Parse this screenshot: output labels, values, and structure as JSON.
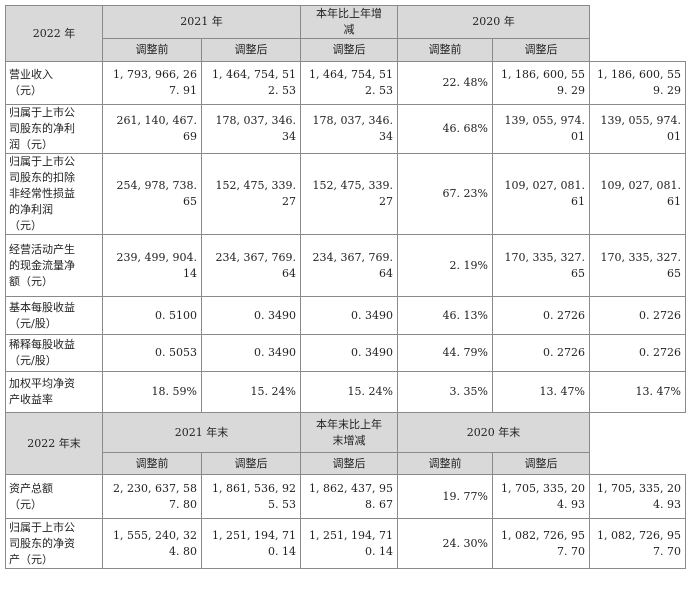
{
  "top_header": {
    "year_2022": "2022 年",
    "year_2021": "2021 年",
    "change": [
      "本年比上年增",
      "减"
    ],
    "year_2020": "2020 年",
    "before_adj": "调整前",
    "after_adj": "调整后"
  },
  "income_rows": [
    {
      "label": [
        "营业收入",
        "（元）"
      ],
      "v2022": [
        "1, 793, 966, 26",
        "7. 91"
      ],
      "v2021_before": [
        "1, 464, 754, 51",
        "2. 53"
      ],
      "v2021_after": [
        "1, 464, 754, 51",
        "2. 53"
      ],
      "change": "22. 48%",
      "v2020_before": [
        "1, 186, 600, 55",
        "9. 29"
      ],
      "v2020_after": [
        "1, 186, 600, 55",
        "9. 29"
      ]
    },
    {
      "label": [
        "归属于上市公",
        "司股东的净利",
        "润（元）"
      ],
      "v2022": [
        "261, 140, 467.",
        "69"
      ],
      "v2021_before": [
        "178, 037, 346.",
        "34"
      ],
      "v2021_after": [
        "178, 037, 346.",
        "34"
      ],
      "change": "46. 68%",
      "v2020_before": [
        "139, 055, 974.",
        "01"
      ],
      "v2020_after": [
        "139, 055, 974.",
        "01"
      ]
    },
    {
      "label": [
        "归属于上市公",
        "司股东的扣除",
        "非经常性损益",
        "的净利润",
        "（元）"
      ],
      "v2022": [
        "254, 978, 738.",
        "65"
      ],
      "v2021_before": [
        "152, 475, 339.",
        "27"
      ],
      "v2021_after": [
        "152, 475, 339.",
        "27"
      ],
      "change": "67. 23%",
      "v2020_before": [
        "109, 027, 081.",
        "61"
      ],
      "v2020_after": [
        "109, 027, 081.",
        "61"
      ]
    },
    {
      "label": [
        "经营活动产生",
        "的现金流量净",
        "额（元）"
      ],
      "v2022": [
        "239, 499, 904.",
        "14"
      ],
      "v2021_before": [
        "234, 367, 769.",
        "64"
      ],
      "v2021_after": [
        "234, 367, 769.",
        "64"
      ],
      "change": "2. 19%",
      "v2020_before": [
        "170, 335, 327.",
        "65"
      ],
      "v2020_after": [
        "170, 335, 327.",
        "65"
      ]
    },
    {
      "label": [
        "基本每股收益",
        "（元/股）"
      ],
      "v2022": [
        "0. 5100"
      ],
      "v2021_before": [
        "0. 3490"
      ],
      "v2021_after": [
        "0. 3490"
      ],
      "change": "46. 13%",
      "v2020_before": [
        "0. 2726"
      ],
      "v2020_after": [
        "0. 2726"
      ]
    },
    {
      "label": [
        "稀释每股收益",
        "（元/股）"
      ],
      "v2022": [
        "0. 5053"
      ],
      "v2021_before": [
        "0. 3490"
      ],
      "v2021_after": [
        "0. 3490"
      ],
      "change": "44. 79%",
      "v2020_before": [
        "0. 2726"
      ],
      "v2020_after": [
        "0. 2726"
      ]
    },
    {
      "label": [
        "加权平均净资",
        "产收益率"
      ],
      "v2022": [
        "18. 59%"
      ],
      "v2021_before": [
        "15. 24%"
      ],
      "v2021_after": [
        "15. 24%"
      ],
      "change": "3. 35%",
      "v2020_before": [
        "13. 47%"
      ],
      "v2020_after": [
        "13. 47%"
      ]
    }
  ],
  "bottom_header": {
    "year_2022_end": "2022 年末",
    "year_2021_end": "2021 年末",
    "change": [
      "本年末比上年",
      "末增减"
    ],
    "year_2020_end": "2020 年末",
    "before_adj": "调整前",
    "after_adj": "调整后"
  },
  "asset_rows": [
    {
      "label": [
        "资产总额",
        "（元）"
      ],
      "v2022": [
        "2, 230, 637, 58",
        "7. 80"
      ],
      "v2021_before": [
        "1, 861, 536, 92",
        "5. 53"
      ],
      "v2021_after": [
        "1, 862, 437, 95",
        "8. 67"
      ],
      "change": "19. 77%",
      "v2020_before": [
        "1, 705, 335, 20",
        "4. 93"
      ],
      "v2020_after": [
        "1, 705, 335, 20",
        "4. 93"
      ]
    },
    {
      "label": [
        "归属于上市公",
        "司股东的净资",
        "产（元）"
      ],
      "v2022": [
        "1, 555, 240, 32",
        "4. 80"
      ],
      "v2021_before": [
        "1, 251, 194, 71",
        "0. 14"
      ],
      "v2021_after": [
        "1, 251, 194, 71",
        "0. 14"
      ],
      "change": "24. 30%",
      "v2020_before": [
        "1, 082, 726, 95",
        "7. 70"
      ],
      "v2020_after": [
        "1, 082, 726, 95",
        "7. 70"
      ]
    }
  ]
}
